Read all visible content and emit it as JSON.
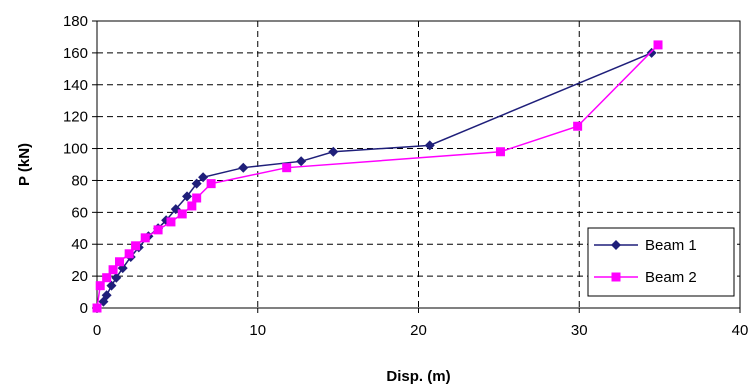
{
  "chart_data": {
    "type": "scatter",
    "xlabel": "Disp. (m)",
    "ylabel": "P (kN)",
    "xlim": [
      0,
      40
    ],
    "ylim": [
      0,
      180
    ],
    "xticks": [
      0,
      10,
      20,
      30,
      40
    ],
    "yticks": [
      0,
      20,
      40,
      60,
      80,
      100,
      120,
      140,
      160,
      180
    ],
    "grid": "dashed",
    "legend_position": "bottom-right",
    "series": [
      {
        "name": "Beam 1",
        "color": "#1f1f7a",
        "marker": "diamond",
        "points": [
          [
            0,
            0
          ],
          [
            0.4,
            4
          ],
          [
            0.6,
            8
          ],
          [
            0.9,
            14
          ],
          [
            1.2,
            19
          ],
          [
            1.6,
            25
          ],
          [
            2.1,
            32
          ],
          [
            2.6,
            38
          ],
          [
            3.2,
            45
          ],
          [
            3.8,
            50
          ],
          [
            4.3,
            55
          ],
          [
            4.9,
            62
          ],
          [
            5.6,
            70
          ],
          [
            6.2,
            78
          ],
          [
            6.6,
            82
          ],
          [
            9.1,
            88
          ],
          [
            12.7,
            92
          ],
          [
            14.7,
            98
          ],
          [
            20.7,
            102
          ],
          [
            34.5,
            160
          ]
        ]
      },
      {
        "name": "Beam 2",
        "color": "#ff00ff",
        "marker": "square",
        "points": [
          [
            0,
            0
          ],
          [
            0.2,
            14
          ],
          [
            0.6,
            19
          ],
          [
            1.0,
            24
          ],
          [
            1.4,
            29
          ],
          [
            2.0,
            34
          ],
          [
            2.4,
            39
          ],
          [
            3.0,
            44
          ],
          [
            3.8,
            49
          ],
          [
            4.6,
            54
          ],
          [
            5.3,
            59
          ],
          [
            5.9,
            64
          ],
          [
            6.2,
            69
          ],
          [
            7.1,
            78
          ],
          [
            11.8,
            88
          ],
          [
            25.1,
            98
          ],
          [
            29.9,
            114
          ],
          [
            34.9,
            165
          ]
        ]
      }
    ]
  }
}
